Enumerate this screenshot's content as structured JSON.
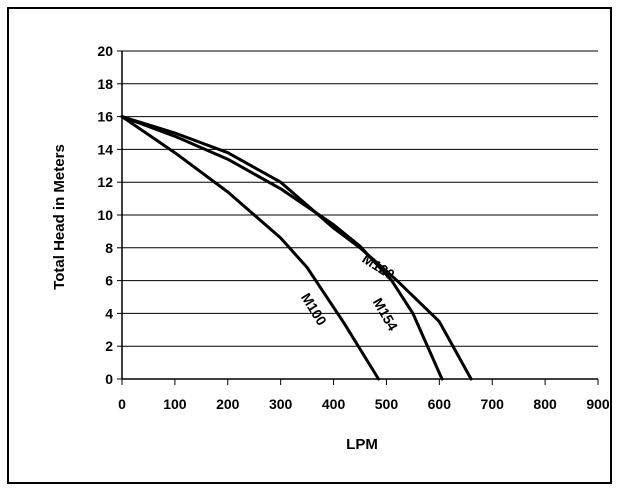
{
  "chart_data": {
    "type": "line",
    "title": "",
    "xlabel": "LPM",
    "ylabel": "Total Head in Meters",
    "xlim": [
      0,
      900
    ],
    "ylim": [
      0,
      20
    ],
    "xticks": [
      0,
      100,
      200,
      300,
      400,
      500,
      600,
      700,
      800,
      900
    ],
    "yticks": [
      0,
      2,
      4,
      6,
      8,
      10,
      12,
      14,
      16,
      18,
      20
    ],
    "grid": "horizontal",
    "legend": "none",
    "series": [
      {
        "name": "M100",
        "points": [
          [
            0,
            16
          ],
          [
            100,
            13.8
          ],
          [
            200,
            11.4
          ],
          [
            300,
            8.6
          ],
          [
            350,
            6.8
          ],
          [
            420,
            3.4
          ],
          [
            485,
            0
          ]
        ]
      },
      {
        "name": "M120",
        "points": [
          [
            0,
            16
          ],
          [
            100,
            15
          ],
          [
            200,
            13.8
          ],
          [
            300,
            12
          ],
          [
            400,
            9.2
          ],
          [
            450,
            8
          ],
          [
            520,
            6
          ],
          [
            600,
            3.5
          ],
          [
            660,
            0
          ]
        ]
      },
      {
        "name": "M154",
        "points": [
          [
            0,
            16
          ],
          [
            100,
            14.8
          ],
          [
            200,
            13.4
          ],
          [
            300,
            11.6
          ],
          [
            400,
            9.4
          ],
          [
            450,
            8.1
          ],
          [
            510,
            6
          ],
          [
            550,
            4
          ],
          [
            605,
            0
          ]
        ]
      }
    ]
  }
}
